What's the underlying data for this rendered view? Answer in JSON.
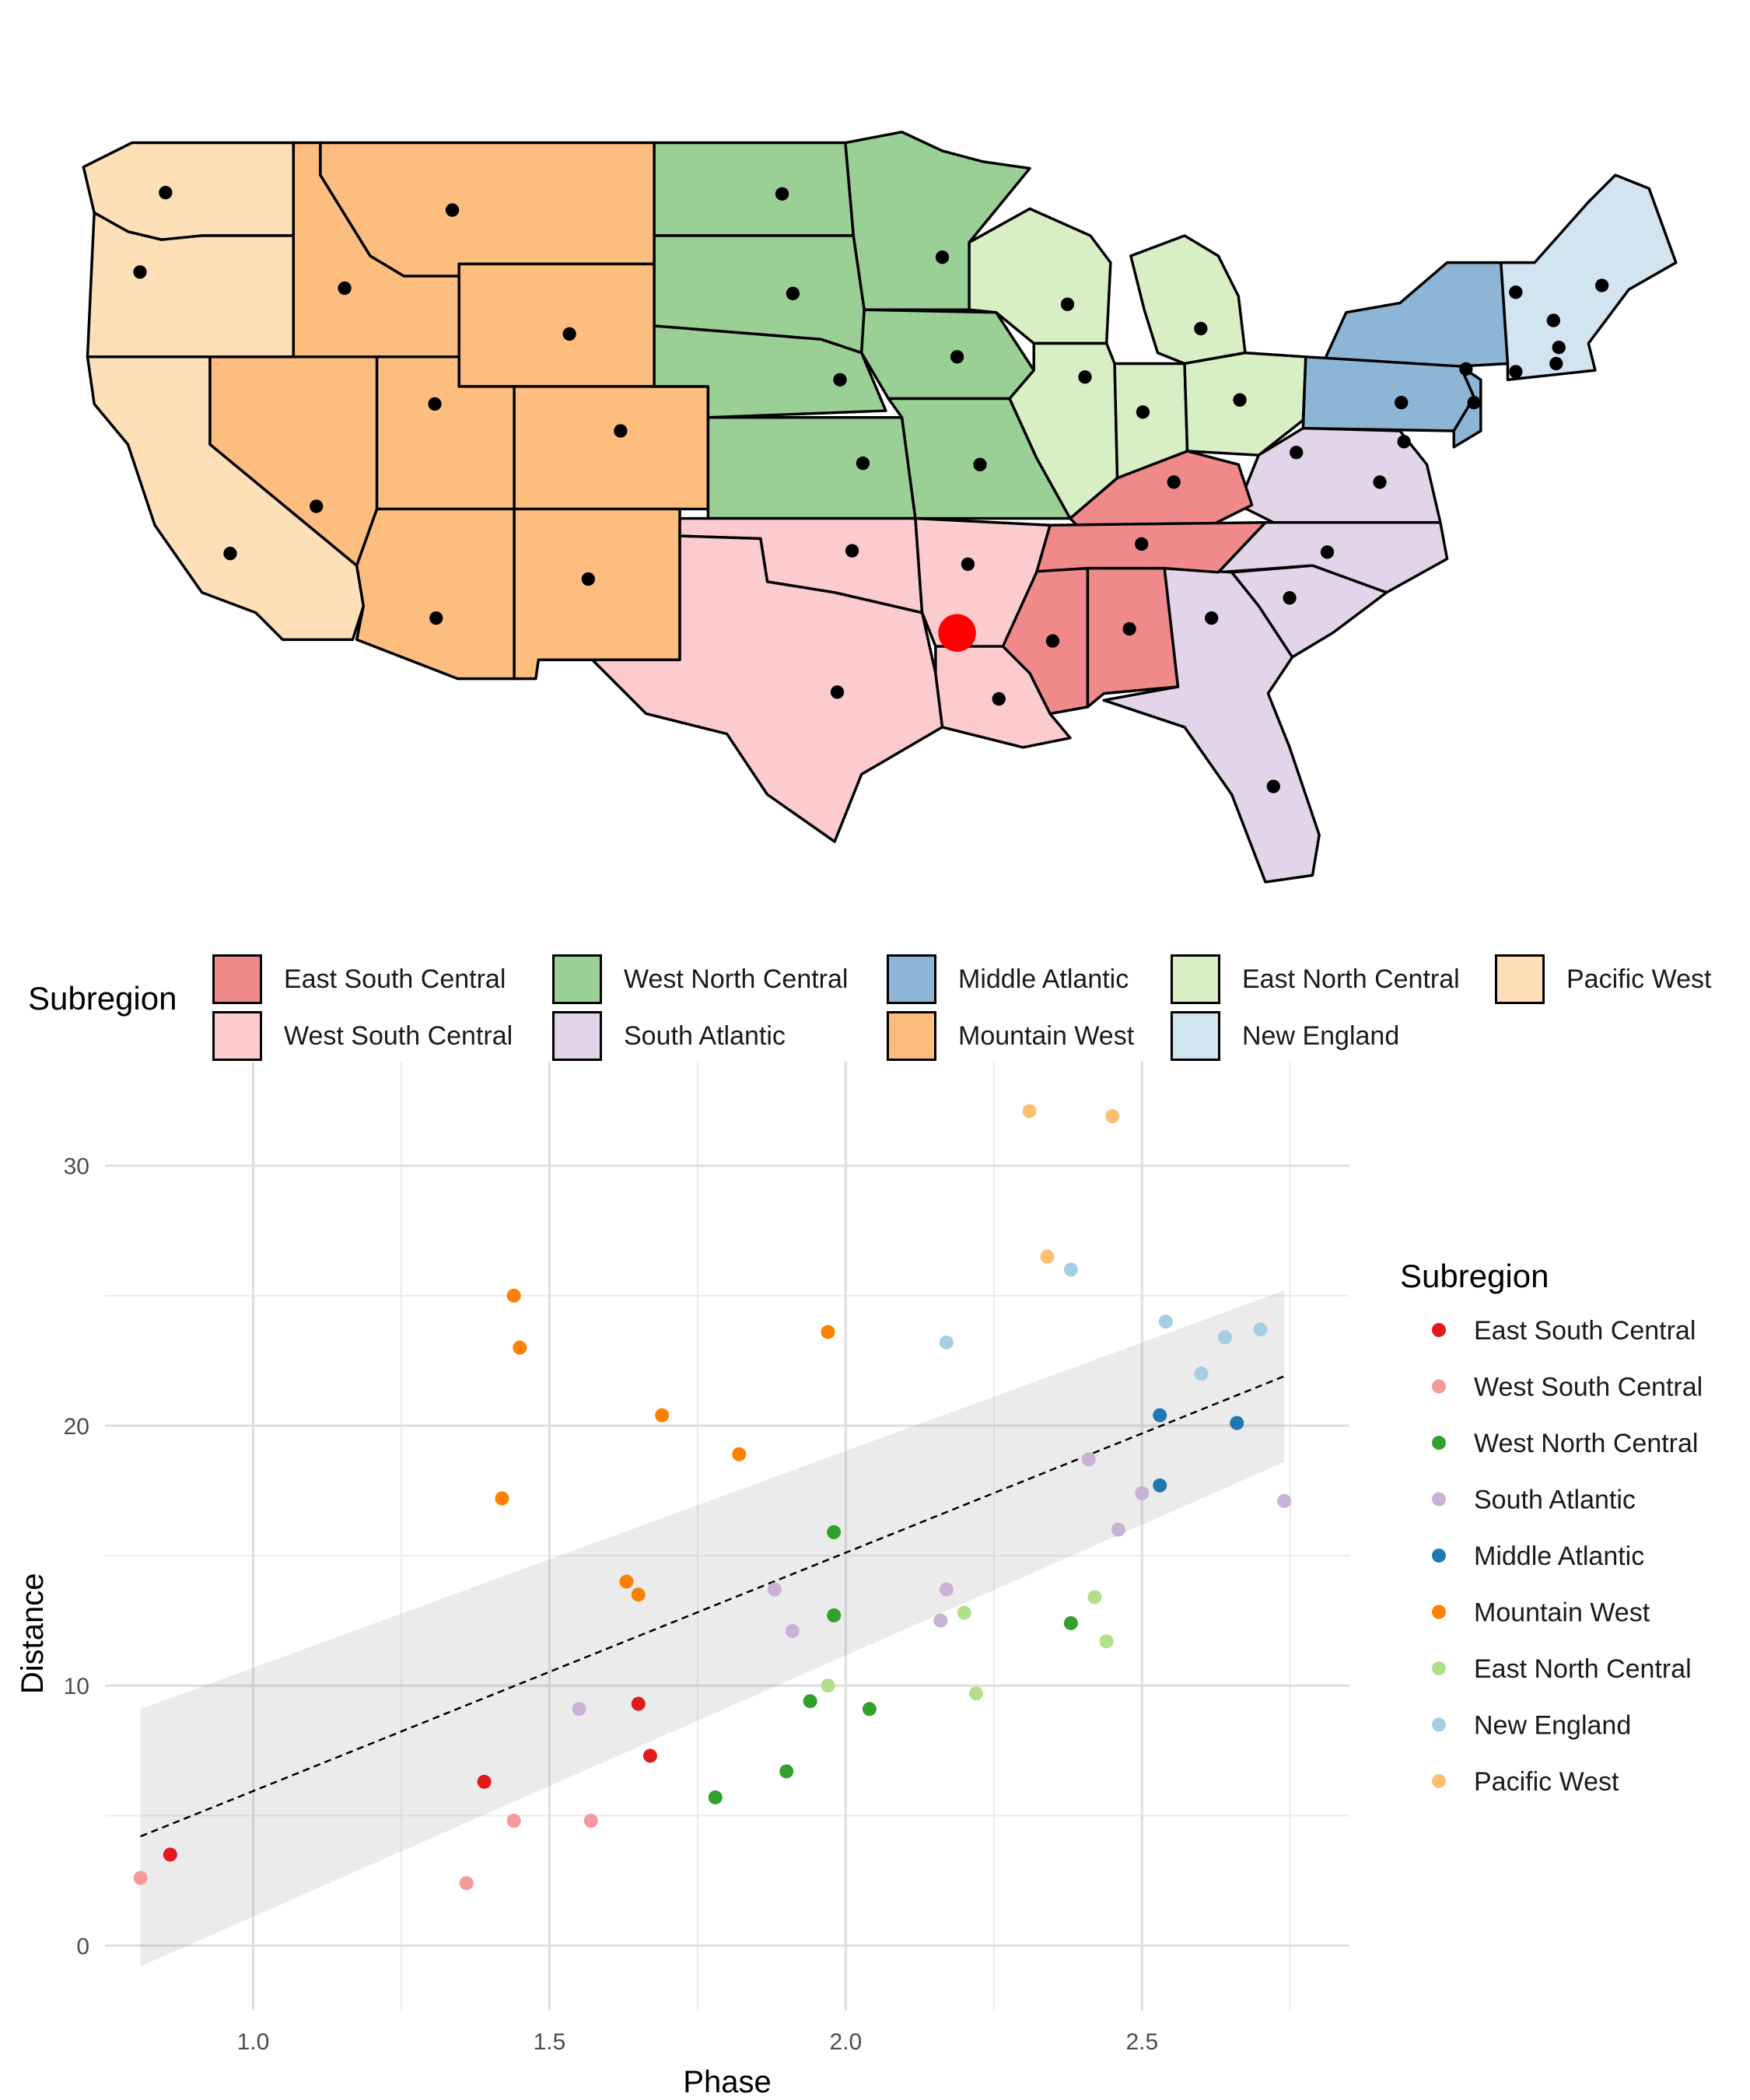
{
  "map_legend": {
    "title": "Subregion",
    "items": [
      {
        "label": "East South Central",
        "color": "#F08A8A"
      },
      {
        "label": "West South Central",
        "color": "#FBCBCE"
      },
      {
        "label": "West North Central",
        "color": "#9ACF95"
      },
      {
        "label": "South Atlantic",
        "color": "#E2D5EA"
      },
      {
        "label": "Middle Atlantic",
        "color": "#8DB6D6"
      },
      {
        "label": "Mountain West",
        "color": "#FDBD7F"
      },
      {
        "label": "East North Central",
        "color": "#D8EFC6"
      },
      {
        "label": "New England",
        "color": "#D2E4F0"
      },
      {
        "label": "Pacific West",
        "color": "#FDDFB8"
      }
    ]
  },
  "chart_data": {
    "type": "scatter",
    "xlabel": "Phase",
    "ylabel": "Distance",
    "xlim": [
      0.75,
      2.85
    ],
    "ylim": [
      -2.5,
      34
    ],
    "x_ticks": [
      1.0,
      1.5,
      2.0,
      2.5
    ],
    "x_tick_labels": [
      "1.0",
      "1.5",
      "2.0",
      "2.5"
    ],
    "y_ticks": [
      0,
      10,
      20,
      30
    ],
    "y_tick_labels": [
      "0",
      "10",
      "20",
      "30"
    ],
    "grid": true,
    "legend": {
      "title": "Subregion",
      "position": "right"
    },
    "trend": {
      "x0": 0.81,
      "y0": 4.2,
      "x1": 2.74,
      "y1": 21.9,
      "band_lo": [
        -0.8,
        18.6
      ],
      "band_hi": [
        9.1,
        25.2
      ]
    },
    "series": [
      {
        "name": "East South Central",
        "color": "#E31A1C",
        "points": [
          [
            0.86,
            3.5
          ],
          [
            1.39,
            6.3
          ],
          [
            1.65,
            9.3
          ],
          [
            1.67,
            7.3
          ]
        ]
      },
      {
        "name": "West South Central",
        "color": "#F4999C",
        "points": [
          [
            0.81,
            2.6
          ],
          [
            1.36,
            2.4
          ],
          [
            1.44,
            4.8
          ],
          [
            1.57,
            4.8
          ]
        ]
      },
      {
        "name": "West North Central",
        "color": "#33A02C",
        "points": [
          [
            1.78,
            5.7
          ],
          [
            1.9,
            6.7
          ],
          [
            1.94,
            9.4
          ],
          [
            1.98,
            15.9
          ],
          [
            1.98,
            12.7
          ],
          [
            2.04,
            9.1
          ],
          [
            2.38,
            12.4
          ]
        ]
      },
      {
        "name": "South Atlantic",
        "color": "#CAB2D6",
        "points": [
          [
            1.55,
            9.1
          ],
          [
            1.88,
            13.7
          ],
          [
            1.91,
            12.1
          ],
          [
            2.16,
            12.5
          ],
          [
            2.17,
            13.7
          ],
          [
            2.41,
            18.7
          ],
          [
            2.46,
            16.0
          ],
          [
            2.5,
            17.4
          ],
          [
            2.74,
            17.1
          ]
        ]
      },
      {
        "name": "Middle Atlantic",
        "color": "#1F78B4",
        "points": [
          [
            2.53,
            20.4
          ],
          [
            2.53,
            17.7
          ],
          [
            2.66,
            20.1
          ]
        ]
      },
      {
        "name": "Mountain West",
        "color": "#FF7F00",
        "points": [
          [
            1.42,
            17.2
          ],
          [
            1.44,
            25.0
          ],
          [
            1.45,
            23.0
          ],
          [
            1.63,
            14.0
          ],
          [
            1.65,
            13.5
          ],
          [
            1.69,
            20.4
          ],
          [
            1.82,
            18.9
          ],
          [
            1.97,
            23.6
          ]
        ]
      },
      {
        "name": "East North Central",
        "color": "#B2DF8A",
        "points": [
          [
            1.97,
            10.0
          ],
          [
            2.2,
            12.8
          ],
          [
            2.22,
            9.7
          ],
          [
            2.42,
            13.4
          ],
          [
            2.44,
            11.7
          ]
        ]
      },
      {
        "name": "New England",
        "color": "#A6CEE3",
        "points": [
          [
            2.17,
            23.2
          ],
          [
            2.38,
            26.0
          ],
          [
            2.54,
            24.0
          ],
          [
            2.6,
            22.0
          ],
          [
            2.64,
            23.4
          ],
          [
            2.7,
            23.7
          ]
        ]
      },
      {
        "name": "Pacific West",
        "color": "#FDBF6F",
        "points": [
          [
            2.31,
            32.1
          ],
          [
            2.34,
            26.5
          ],
          [
            2.45,
            31.9
          ]
        ]
      }
    ]
  }
}
